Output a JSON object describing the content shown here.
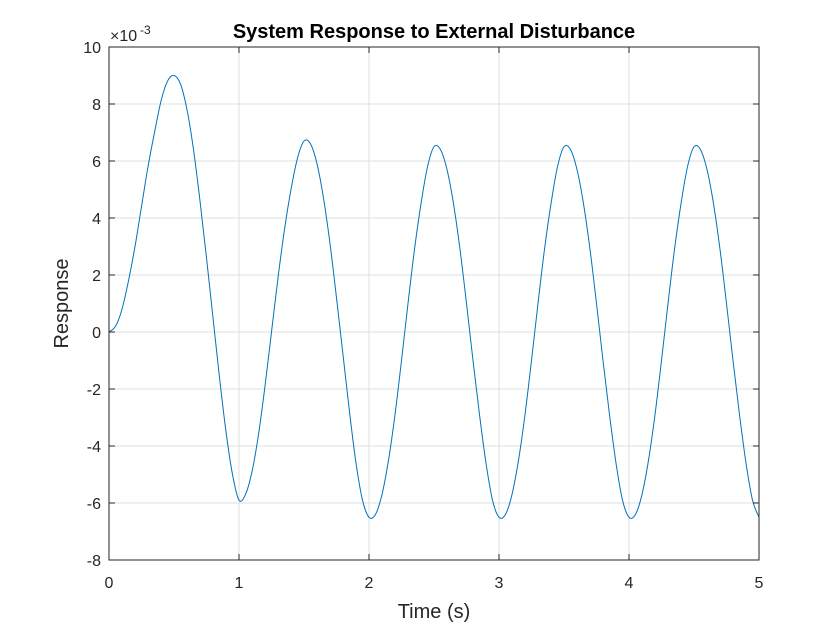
{
  "chart_data": {
    "type": "line",
    "title": "System Response to External Disturbance",
    "xlabel": "Time (s)",
    "ylabel": "Response",
    "xlim": [
      0,
      5
    ],
    "ylim": [
      -8,
      10
    ],
    "y_scale_factor": "×10^-3",
    "y_scale_base": "×10",
    "y_scale_exponent": "-3",
    "xticks": [
      0,
      1,
      2,
      3,
      4,
      5
    ],
    "xtick_labels": [
      "0",
      "1",
      "2",
      "3",
      "4",
      "5"
    ],
    "yticks": [
      -8,
      -6,
      -4,
      -2,
      0,
      2,
      4,
      6,
      8,
      10
    ],
    "ytick_labels": [
      "-8",
      "-6",
      "-4",
      "-2",
      "0",
      "2",
      "4",
      "6",
      "8",
      "10"
    ],
    "grid": true,
    "series": [
      {
        "name": "Response",
        "color": "#0072BD",
        "x": [
          0,
          0.05,
          0.1,
          0.15,
          0.2,
          0.25,
          0.3,
          0.35,
          0.4,
          0.45,
          0.5,
          0.55,
          0.6,
          0.65,
          0.7,
          0.75,
          0.8,
          0.85,
          0.9,
          0.95,
          1.0,
          1.05,
          1.1,
          1.15,
          1.2,
          1.25,
          1.3,
          1.35,
          1.4,
          1.45,
          1.5,
          1.55,
          1.6,
          1.65,
          1.7,
          1.75,
          1.8,
          1.85,
          1.9,
          1.95,
          2.0,
          2.05,
          2.1,
          2.15,
          2.2,
          2.25,
          2.3,
          2.35,
          2.4,
          2.45,
          2.5,
          2.55,
          2.6,
          2.65,
          2.7,
          2.75,
          2.8,
          2.85,
          2.9,
          2.95,
          3.0,
          3.05,
          3.1,
          3.15,
          3.2,
          3.25,
          3.3,
          3.35,
          3.4,
          3.45,
          3.5,
          3.55,
          3.6,
          3.65,
          3.7,
          3.75,
          3.8,
          3.85,
          3.9,
          3.95,
          4.0,
          4.05,
          4.1,
          4.15,
          4.2,
          4.25,
          4.3,
          4.35,
          4.4,
          4.45,
          4.5,
          4.55,
          4.6,
          4.65,
          4.7,
          4.75,
          4.8,
          4.85,
          4.9,
          4.95,
          5.0
        ],
        "y": [
          0,
          0.2,
          0.8,
          1.8,
          3.0,
          4.4,
          5.8,
          7.0,
          8.1,
          8.8,
          9.0,
          8.7,
          7.8,
          6.4,
          4.6,
          2.6,
          0.5,
          -1.6,
          -3.5,
          -5.0,
          -5.9,
          -5.7,
          -4.9,
          -3.6,
          -1.9,
          0.0,
          1.9,
          3.6,
          5.0,
          6.1,
          6.7,
          6.6,
          5.9,
          4.7,
          3.1,
          1.2,
          -0.8,
          -2.8,
          -4.6,
          -5.9,
          -6.5,
          -6.4,
          -5.7,
          -4.5,
          -2.9,
          -1.0,
          1.0,
          2.9,
          4.5,
          5.8,
          6.5,
          6.4,
          5.7,
          4.5,
          2.9,
          1.0,
          -1.0,
          -2.9,
          -4.6,
          -5.9,
          -6.5,
          -6.4,
          -5.7,
          -4.5,
          -2.9,
          -1.0,
          1.0,
          2.9,
          4.5,
          5.8,
          6.5,
          6.4,
          5.7,
          4.5,
          2.9,
          1.0,
          -1.0,
          -2.9,
          -4.6,
          -5.9,
          -6.5,
          -6.4,
          -5.7,
          -4.5,
          -2.9,
          -1.0,
          1.0,
          2.9,
          4.5,
          5.8,
          6.5,
          6.4,
          5.7,
          4.5,
          2.9,
          1.0,
          -1.0,
          -2.9,
          -4.6,
          -5.9,
          -6.5
        ]
      }
    ]
  },
  "colors": {
    "line": "#0072BD",
    "grid": "#dfdfdf",
    "axis": "#262626",
    "background": "#ffffff"
  }
}
